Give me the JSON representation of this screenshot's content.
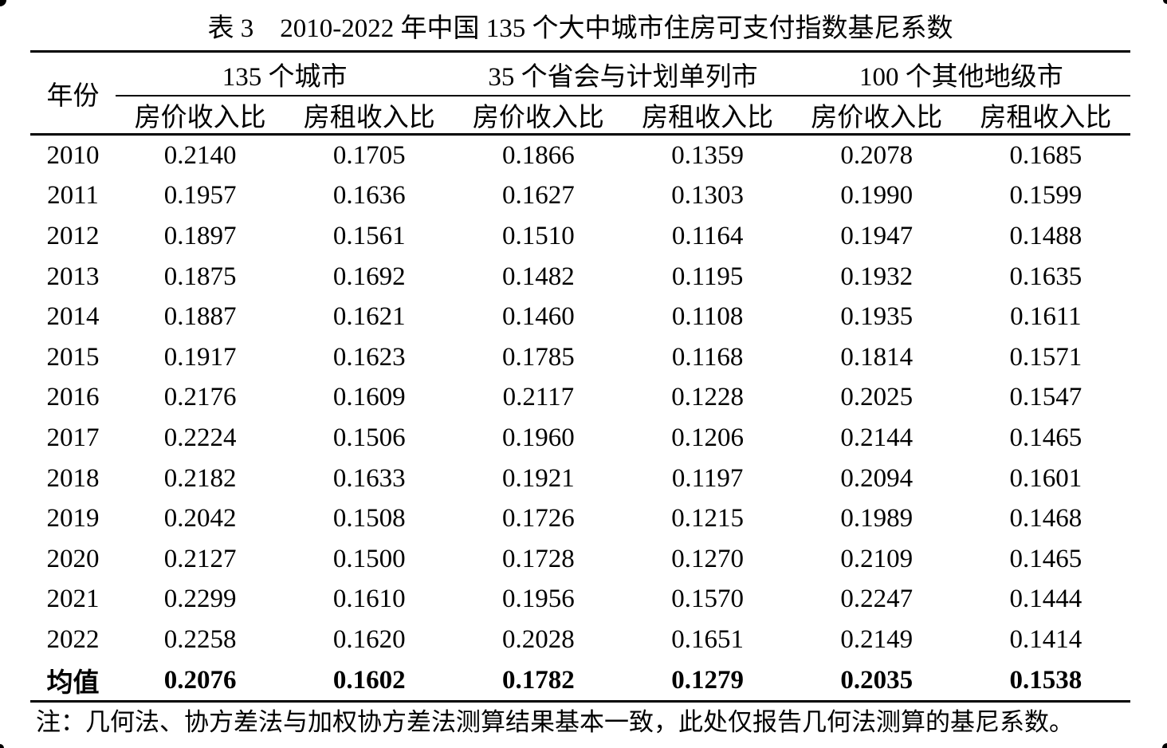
{
  "page": {
    "background": "#ffffff",
    "text_color": "#000000"
  },
  "table": {
    "title": "表 3　2010-2022 年中国 135 个大中城市住房可支付指数基尼系数",
    "header": {
      "year_label": "年份",
      "groups": [
        "135 个城市",
        "35 个省会与计划单列市",
        "100 个其他地级市"
      ],
      "sub_labels": [
        "房价收入比",
        "房租收入比",
        "房价收入比",
        "房租收入比",
        "房价收入比",
        "房租收入比"
      ]
    },
    "rows": [
      {
        "year": "2010",
        "values": [
          "0.2140",
          "0.1705",
          "0.1866",
          "0.1359",
          "0.2078",
          "0.1685"
        ]
      },
      {
        "year": "2011",
        "values": [
          "0.1957",
          "0.1636",
          "0.1627",
          "0.1303",
          "0.1990",
          "0.1599"
        ]
      },
      {
        "year": "2012",
        "values": [
          "0.1897",
          "0.1561",
          "0.1510",
          "0.1164",
          "0.1947",
          "0.1488"
        ]
      },
      {
        "year": "2013",
        "values": [
          "0.1875",
          "0.1692",
          "0.1482",
          "0.1195",
          "0.1932",
          "0.1635"
        ]
      },
      {
        "year": "2014",
        "values": [
          "0.1887",
          "0.1621",
          "0.1460",
          "0.1108",
          "0.1935",
          "0.1611"
        ]
      },
      {
        "year": "2015",
        "values": [
          "0.1917",
          "0.1623",
          "0.1785",
          "0.1168",
          "0.1814",
          "0.1571"
        ]
      },
      {
        "year": "2016",
        "values": [
          "0.2176",
          "0.1609",
          "0.2117",
          "0.1228",
          "0.2025",
          "0.1547"
        ]
      },
      {
        "year": "2017",
        "values": [
          "0.2224",
          "0.1506",
          "0.1960",
          "0.1206",
          "0.2144",
          "0.1465"
        ]
      },
      {
        "year": "2018",
        "values": [
          "0.2182",
          "0.1633",
          "0.1921",
          "0.1197",
          "0.2094",
          "0.1601"
        ]
      },
      {
        "year": "2019",
        "values": [
          "0.2042",
          "0.1508",
          "0.1726",
          "0.1215",
          "0.1989",
          "0.1468"
        ]
      },
      {
        "year": "2020",
        "values": [
          "0.2127",
          "0.1500",
          "0.1728",
          "0.1270",
          "0.2109",
          "0.1465"
        ]
      },
      {
        "year": "2021",
        "values": [
          "0.2299",
          "0.1610",
          "0.1956",
          "0.1570",
          "0.2247",
          "0.1444"
        ]
      },
      {
        "year": "2022",
        "values": [
          "0.2258",
          "0.1620",
          "0.2028",
          "0.1651",
          "0.2149",
          "0.1414"
        ]
      },
      {
        "year": "均值",
        "values": [
          "0.2076",
          "0.1602",
          "0.1782",
          "0.1279",
          "0.2035",
          "0.1538"
        ]
      }
    ],
    "note": "注：几何法、协方差法与加权协方差法测算结果基本一致，此处仅报告几何法测算的基尼系数。"
  },
  "chart_data": {
    "type": "table",
    "title": "表 3　2010-2022 年中国 135 个大中城市住房可支付指数基尼系数",
    "column_groups": [
      {
        "label": "135 个城市",
        "span": 2
      },
      {
        "label": "35 个省会与计划单列市",
        "span": 2
      },
      {
        "label": "100 个其他地级市",
        "span": 2
      }
    ],
    "columns": [
      "年份",
      "135 个城市 房价收入比",
      "135 个城市 房租收入比",
      "35 个省会与计划单列市 房价收入比",
      "35 个省会与计划单列市 房租收入比",
      "100 个其他地级市 房价收入比",
      "100 个其他地级市 房租收入比"
    ],
    "rows": [
      [
        "2010",
        "0.2140",
        "0.1705",
        "0.1866",
        "0.1359",
        "0.2078",
        "0.1685"
      ],
      [
        "2011",
        "0.1957",
        "0.1636",
        "0.1627",
        "0.1303",
        "0.1990",
        "0.1599"
      ],
      [
        "2012",
        "0.1897",
        "0.1561",
        "0.1510",
        "0.1164",
        "0.1947",
        "0.1488"
      ],
      [
        "2013",
        "0.1875",
        "0.1692",
        "0.1482",
        "0.1195",
        "0.1932",
        "0.1635"
      ],
      [
        "2014",
        "0.1887",
        "0.1621",
        "0.1460",
        "0.1108",
        "0.1935",
        "0.1611"
      ],
      [
        "2015",
        "0.1917",
        "0.1623",
        "0.1785",
        "0.1168",
        "0.1814",
        "0.1571"
      ],
      [
        "2016",
        "0.2176",
        "0.1609",
        "0.2117",
        "0.1228",
        "0.2025",
        "0.1547"
      ],
      [
        "2017",
        "0.2224",
        "0.1506",
        "0.1960",
        "0.1206",
        "0.2144",
        "0.1465"
      ],
      [
        "2018",
        "0.2182",
        "0.1633",
        "0.1921",
        "0.1197",
        "0.2094",
        "0.1601"
      ],
      [
        "2019",
        "0.2042",
        "0.1508",
        "0.1726",
        "0.1215",
        "0.1989",
        "0.1468"
      ],
      [
        "2020",
        "0.2127",
        "0.1500",
        "0.1728",
        "0.1270",
        "0.2109",
        "0.1465"
      ],
      [
        "2021",
        "0.2299",
        "0.1610",
        "0.1956",
        "0.1570",
        "0.2247",
        "0.1444"
      ],
      [
        "2022",
        "0.2258",
        "0.1620",
        "0.2028",
        "0.1651",
        "0.2149",
        "0.1414"
      ],
      [
        "均值",
        "0.2076",
        "0.1602",
        "0.1782",
        "0.1279",
        "0.2035",
        "0.1538"
      ]
    ]
  }
}
